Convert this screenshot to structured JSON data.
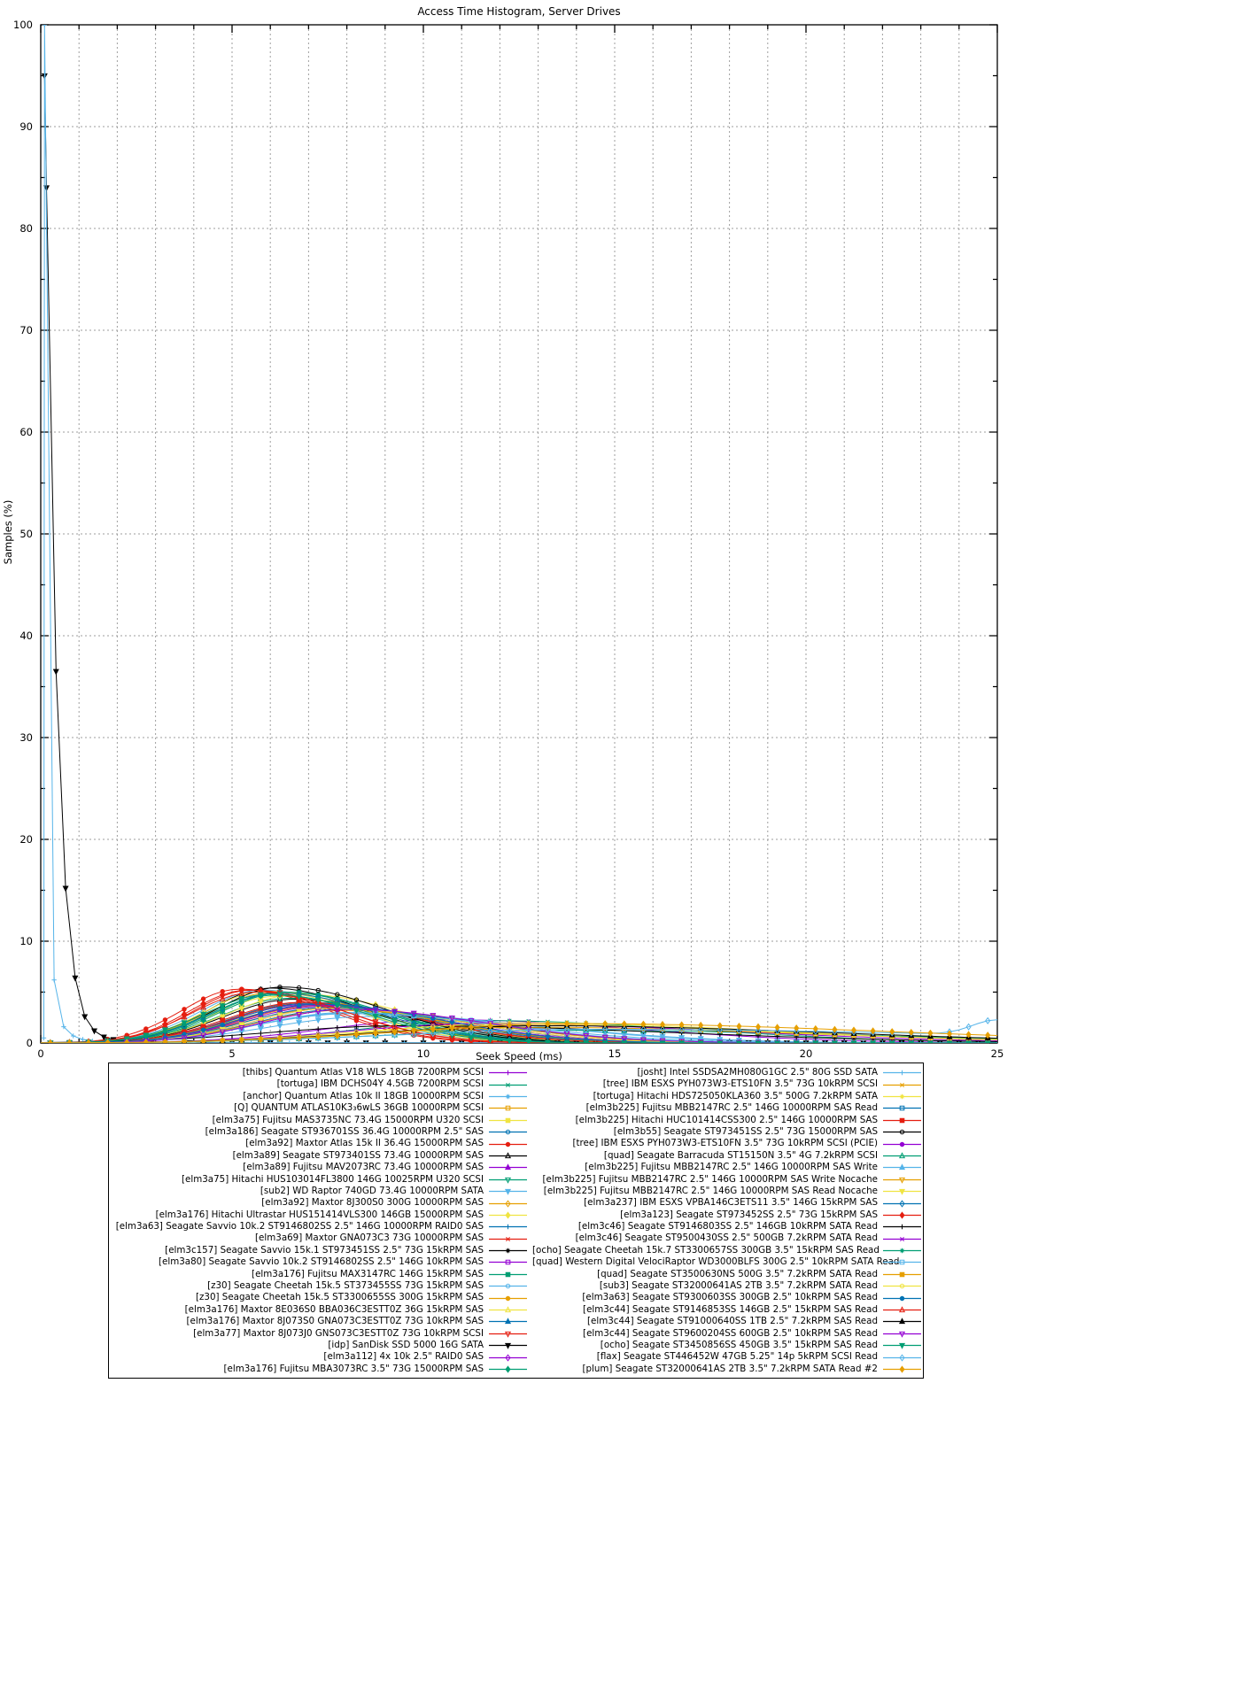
{
  "title": "Access Time Histogram, Server Drives",
  "xlabel": "Seek Speed (ms)",
  "ylabel": "Samples (%)",
  "palette": [
    "#9400d3",
    "#009e73",
    "#56b4e9",
    "#e69f00",
    "#f0e442",
    "#0072b2",
    "#e51e10",
    "#000000"
  ],
  "marker_names": [
    "plus",
    "cross",
    "asterisk",
    "square-open",
    "square-filled",
    "circle-open",
    "circle-filled",
    "triangle-up-open",
    "triangle-up-filled",
    "triangle-down-open",
    "triangle-down-filled",
    "diamond-open",
    "diamond-filled"
  ],
  "chart_data": {
    "type": "line",
    "title": "Access Time Histogram, Server Drives",
    "xlabel": "Seek Speed (ms)",
    "ylabel": "Samples (%)",
    "xlim": [
      0,
      25
    ],
    "ylim": [
      0,
      100
    ],
    "x_ticks": [
      0,
      5,
      10,
      15,
      20,
      25
    ],
    "y_ticks": [
      0,
      10,
      20,
      30,
      40,
      50,
      60,
      70,
      80,
      90,
      100
    ],
    "x_minor_step": 1,
    "grid": true,
    "legend_position": "below-two-columns",
    "curve_model_note": "curve=[peak_x_ms, peak_pct, sigma_left, sigma_right] skewed bell read from plot; pts=[x_ms, pct] explicit points",
    "series": [
      {
        "label": "[thibs] Quantum Atlas V18 WLS 18GB 7200RPM SCSI",
        "color": "#9400d3",
        "marker": "plus",
        "curve": [
          10.5,
          2.3,
          3.0,
          5.0
        ]
      },
      {
        "label": "[tortuga] IBM DCHS04Y 4.5GB 7200RPM SCSI",
        "color": "#009e73",
        "marker": "cross",
        "curve": [
          11.5,
          2.2,
          3.2,
          5.5
        ]
      },
      {
        "label": "[anchor] Quantum Atlas 10k II 18GB 10000RPM SCSI",
        "color": "#56b4e9",
        "marker": "asterisk",
        "curve": [
          8.2,
          2.9,
          2.6,
          4.5
        ]
      },
      {
        "label": "[Q] QUANTUM ATLAS10K3₃6wLS 36GB 10000RPM SCSI",
        "color": "#e69f00",
        "marker": "square-open",
        "curve": [
          7.5,
          3.4,
          2.2,
          3.8
        ]
      },
      {
        "label": "[elm3a75] Fujitsu MAS3735NC 73.4G 15000RPM U320 SCSI",
        "color": "#f0e442",
        "marker": "square-filled",
        "curve": [
          6.2,
          4.6,
          1.7,
          2.6
        ]
      },
      {
        "label": "[elm3a186] Seagate ST936701SS 36.4G 10000RPM 2.5\" SAS",
        "color": "#0072b2",
        "marker": "circle-open",
        "curve": [
          6.9,
          4.0,
          1.9,
          3.0
        ]
      },
      {
        "label": "[elm3a92] Maxtor Atlas 15k II 36.4G 15000RPM SAS",
        "color": "#e51e10",
        "marker": "circle-filled",
        "curve": [
          5.2,
          5.3,
          1.5,
          2.3
        ]
      },
      {
        "label": "[elm3a89] Seagate ST973401SS 73.4G 10000RPM SAS",
        "color": "#000000",
        "marker": "triangle-up-open",
        "curve": [
          6.6,
          4.3,
          1.8,
          2.9
        ]
      },
      {
        "label": "[elm3a89] Fujitsu MAV2073RC 73.4G 10000RPM SAS",
        "color": "#9400d3",
        "marker": "triangle-up-filled",
        "curve": [
          7.0,
          3.8,
          2.0,
          3.2
        ]
      },
      {
        "label": "[elm3a75] Hitachi HUS103014FL3800 146G 10025RPM U320 SCSI",
        "color": "#009e73",
        "marker": "triangle-down-open",
        "curve": [
          6.5,
          4.4,
          1.8,
          2.8
        ]
      },
      {
        "label": "[sub2] WD Raptor 740GD 73.4G 10000RPM SATA",
        "color": "#56b4e9",
        "marker": "triangle-down-filled",
        "curve": [
          8.6,
          2.6,
          2.6,
          4.6
        ]
      },
      {
        "label": "[elm3a92] Maxtor 8J300S0 300G 10000RPM SAS",
        "color": "#e69f00",
        "marker": "diamond-open",
        "curve": [
          7.2,
          3.6,
          2.0,
          3.3
        ]
      },
      {
        "label": "[elm3a176] Hitachi Ultrastar HUS151414VLS300 146GB 15000RPM SAS",
        "color": "#f0e442",
        "marker": "diamond-filled",
        "curve": [
          6.8,
          4.8,
          1.9,
          2.8
        ]
      },
      {
        "label": "[elm3a63] Seagate Savvio 10k.2 ST9146802SS 2.5\" 146G 10000RPM RAID0 SAS",
        "color": "#0072b2",
        "marker": "plus",
        "curve": [
          7.8,
          3.3,
          2.2,
          3.6
        ]
      },
      {
        "label": "[elm3a69] Maxtor GNA073C3 73G 10000RPM SAS",
        "color": "#e51e10",
        "marker": "cross",
        "curve": [
          6.9,
          3.9,
          1.9,
          3.0
        ]
      },
      {
        "label": "[elm3c157] Seagate Savvio 15k.1 ST973451SS 2.5\" 73G 15kRPM SAS",
        "color": "#000000",
        "marker": "asterisk",
        "curve": [
          6.0,
          5.4,
          1.6,
          2.5
        ]
      },
      {
        "label": "[elm3a80] Seagate Savvio 10k.2 ST9146802SS 2.5\" 146G 10kRPM SAS",
        "color": "#9400d3",
        "marker": "square-open",
        "curve": [
          7.4,
          3.6,
          2.1,
          3.4
        ]
      },
      {
        "label": "[elm3a176] Fujitsu MAX3147RC 146G 15kRPM SAS",
        "color": "#009e73",
        "marker": "square-filled",
        "curve": [
          6.3,
          5.0,
          1.7,
          2.6
        ]
      },
      {
        "label": "[z30] Seagate Cheetah 15k.5 ST373455SS 73G 15kRPM SAS",
        "color": "#56b4e9",
        "marker": "circle-open",
        "curve": [
          5.8,
          5.2,
          1.6,
          2.4
        ]
      },
      {
        "label": "[z30] Seagate Cheetah 15k.5 ST3300655SS 300G 15kRPM SAS",
        "color": "#e69f00",
        "marker": "circle-filled",
        "curve": [
          6.1,
          5.0,
          1.7,
          2.5
        ]
      },
      {
        "label": "[elm3a176] Maxtor 8E036S0 BBA036C3ESTT0Z 36G 15kRPM SAS",
        "color": "#f0e442",
        "marker": "triangle-up-open",
        "curve": [
          5.9,
          5.1,
          1.6,
          2.4
        ]
      },
      {
        "label": "[elm3a176] Maxtor 8J073S0 GNA073C3ESTT0Z 73G 10kRPM SAS",
        "color": "#0072b2",
        "marker": "triangle-up-filled",
        "curve": [
          7.0,
          3.9,
          1.9,
          3.1
        ]
      },
      {
        "label": "[elm3a77] Maxtor 8J073J0 GNS073C3ESTT0Z 73G 10kRPM SCSI",
        "color": "#e51e10",
        "marker": "triangle-down-open",
        "curve": [
          5.5,
          5.2,
          1.5,
          2.4
        ]
      },
      {
        "label": "[idp] SanDisk SSD 5000 16G SATA",
        "color": "#000000",
        "marker": "triangle-down-filled",
        "pts": [
          [
            0.1,
            95
          ],
          [
            0.15,
            84
          ],
          [
            0.4,
            36.5
          ],
          [
            0.65,
            15.2
          ],
          [
            0.9,
            6.4
          ],
          [
            1.15,
            2.6
          ],
          [
            1.4,
            1.2
          ],
          [
            1.65,
            0.6
          ],
          [
            1.9,
            0.35
          ],
          [
            2.4,
            0.18
          ],
          [
            2.9,
            0.1
          ],
          [
            3.9,
            0.05
          ],
          [
            5.0,
            0.03
          ],
          [
            6.0,
            0.02
          ]
        ]
      },
      {
        "label": "[elm3a112] 4x 10k 2.5\" RAID0 SAS",
        "color": "#9400d3",
        "marker": "diamond-open",
        "curve": [
          7.6,
          3.4,
          2.1,
          3.4
        ]
      },
      {
        "label": "[elm3a176] Fujitsu MBA3073RC 3.5\" 73G 15000RPM SAS",
        "color": "#009e73",
        "marker": "diamond-filled",
        "curve": [
          6.4,
          5.0,
          1.7,
          2.6
        ]
      },
      {
        "label": "[josht] Intel SSDSA2MH080G1GC 2.5\" 80G SSD SATA",
        "color": "#56b4e9",
        "marker": "plus",
        "pts": [
          [
            0.08,
            0.5
          ],
          [
            0.1,
            100
          ],
          [
            0.35,
            6.2
          ],
          [
            0.6,
            1.6
          ],
          [
            0.85,
            0.7
          ],
          [
            1.1,
            0.35
          ],
          [
            1.35,
            0.2
          ],
          [
            1.85,
            0.1
          ],
          [
            2.85,
            0.05
          ],
          [
            4.0,
            0.03
          ]
        ]
      },
      {
        "label": "[tree] IBM ESXS PYH073W3-ETS10FN 3.5\" 73G 10kRPM SCSI",
        "color": "#e69f00",
        "marker": "cross",
        "curve": [
          7.1,
          3.7,
          2.0,
          3.2
        ]
      },
      {
        "label": "[tortuga] Hitachi HDS725050KLA360 3.5\" 500G 7.2kRPM SATA",
        "color": "#f0e442",
        "marker": "asterisk",
        "curve": [
          12.5,
          2.0,
          3.5,
          6.5
        ]
      },
      {
        "label": "[elm3b225] Fujitsu MBB2147RC 2.5\" 146G 10000RPM SAS Read",
        "color": "#0072b2",
        "marker": "square-open",
        "curve": [
          7.5,
          3.5,
          2.1,
          3.4
        ]
      },
      {
        "label": "[elm3b225] Hitachi HUC101414CSS300 2.5\" 146G 10000RPM SAS",
        "color": "#e51e10",
        "marker": "square-filled",
        "curve": [
          6.8,
          4.0,
          1.9,
          3.0
        ]
      },
      {
        "label": "[elm3b55] Seagate ST973451SS 2.5\" 73G 15000RPM SAS",
        "color": "#000000",
        "marker": "circle-open",
        "curve": [
          6.3,
          5.5,
          1.7,
          2.7
        ]
      },
      {
        "label": "[tree] IBM ESXS PYH073W3-ETS10FN 3.5\" 73G 10kRPM SCSI (PCIE)",
        "color": "#9400d3",
        "marker": "circle-filled",
        "curve": [
          7.2,
          3.7,
          2.0,
          3.3
        ]
      },
      {
        "label": "[quad] Seagate Barracuda ST15150N 3.5\" 4G 7.2kRPM SCSI",
        "color": "#009e73",
        "marker": "triangle-up-open",
        "curve": [
          13.5,
          1.25,
          4.5,
          8.0
        ]
      },
      {
        "label": "[elm3b225] Fujitsu MBB2147RC 2.5\" 146G 10000RPM SAS Write",
        "color": "#56b4e9",
        "marker": "triangle-up-filled",
        "curve": [
          7.9,
          2.9,
          2.3,
          4.2
        ]
      },
      {
        "label": "[elm3b225] Fujitsu MBB2147RC 2.5\" 146G 10000RPM SAS Write Nocache",
        "color": "#e69f00",
        "marker": "triangle-down-open",
        "curve": [
          7.8,
          3.2,
          2.2,
          3.6
        ]
      },
      {
        "label": "[elm3b225] Fujitsu MBB2147RC 2.5\" 146G 10000RPM SAS Read Nocache",
        "color": "#f0e442",
        "marker": "triangle-down-filled",
        "curve": [
          7.6,
          3.4,
          2.1,
          3.4
        ]
      },
      {
        "label": "[elm3a237] IBM ESXS VPBA146C3ETS11 3.5\" 146G 15kRPM SAS",
        "color": "#0072b2",
        "marker": "diamond-open",
        "curve": [
          6.2,
          4.9,
          1.7,
          2.6
        ]
      },
      {
        "label": "[elm3a123] Seagate ST973452SS 2.5\" 73G 15kRPM SAS",
        "color": "#e51e10",
        "marker": "diamond-filled",
        "curve": [
          5.4,
          5.2,
          1.5,
          2.3
        ]
      },
      {
        "label": "[elm3c46] Seagate ST9146803SS 2.5\" 146GB 10kRPM SATA Read",
        "color": "#000000",
        "marker": "plus",
        "curve": [
          9.5,
          1.7,
          3.5,
          7.0
        ]
      },
      {
        "label": "[elm3c46] Seagate ST9500430SS 2.5\" 500GB 7.2kRPM SATA Read",
        "color": "#9400d3",
        "marker": "cross",
        "curve": [
          11.5,
          1.9,
          3.5,
          6.5
        ]
      },
      {
        "label": "[ocho] Seagate Cheetah 15k.7 ST3300657SS 300GB 3.5\" 15kRPM SAS Read",
        "color": "#009e73",
        "marker": "asterisk",
        "curve": [
          6.1,
          4.7,
          1.7,
          2.6
        ]
      },
      {
        "label": "[quad] Western Digital VelociRaptor WD3000BLFS 300G 2.5\" 10kRPM SATA Read",
        "color": "#56b4e9",
        "marker": "square-open",
        "curve": [
          8.0,
          3.0,
          2.3,
          3.8
        ]
      },
      {
        "label": "[quad] Seagate ST3500630NS 500G 3.5\" 7.2kRPM SATA Read",
        "color": "#e69f00",
        "marker": "square-filled",
        "curve": [
          12.8,
          1.55,
          4.0,
          7.0
        ]
      },
      {
        "label": "[sub3] Seagate ST32000641AS 2TB 3.5\" 7.2kRPM SATA Read",
        "color": "#f0e442",
        "marker": "circle-open",
        "curve": [
          12.2,
          1.85,
          3.8,
          6.8
        ]
      },
      {
        "label": "[elm3a63] Seagate ST9300603SS 300GB 2.5\" 10kRPM SAS Read",
        "color": "#0072b2",
        "marker": "circle-filled",
        "curve": [
          7.2,
          3.8,
          2.0,
          3.2
        ]
      },
      {
        "label": "[elm3c44] Seagate ST9146853SS 146GB 2.5\" 15kRPM SAS Read",
        "color": "#e51e10",
        "marker": "triangle-up-open",
        "curve": [
          5.6,
          5.0,
          1.6,
          2.4
        ]
      },
      {
        "label": "[elm3c44] Seagate ST91000640SS 1TB 2.5\" 7.2kRPM SAS Read",
        "color": "#000000",
        "marker": "triangle-up-filled",
        "curve": [
          13.0,
          1.7,
          4.2,
          7.5
        ]
      },
      {
        "label": "[elm3c44] Seagate ST9600204SS 600GB 2.5\" 10kRPM SAS Read",
        "color": "#9400d3",
        "marker": "triangle-down-open",
        "curve": [
          8.0,
          3.3,
          2.2,
          3.6
        ]
      },
      {
        "label": "[ocho] Seagate ST3450856SS 450GB 3.5\" 15kRPM SAS Read",
        "color": "#009e73",
        "marker": "triangle-down-filled",
        "curve": [
          6.0,
          4.8,
          1.7,
          2.5
        ]
      },
      {
        "label": "[flax] Seagate ST446452W 47GB 5.25\" 14p 5kRPM SCSI Read",
        "color": "#56b4e9",
        "marker": "diamond-open",
        "curve": [
          14.5,
          1.35,
          5.0,
          10.0
        ],
        "bump": 1.5
      },
      {
        "label": "[plum] Seagate ST32000641AS 2TB 3.5\" 7.2kRPM SATA Read #2",
        "color": "#e69f00",
        "marker": "diamond-filled",
        "curve": [
          14.0,
          1.9,
          4.5,
          8.0
        ]
      }
    ]
  }
}
